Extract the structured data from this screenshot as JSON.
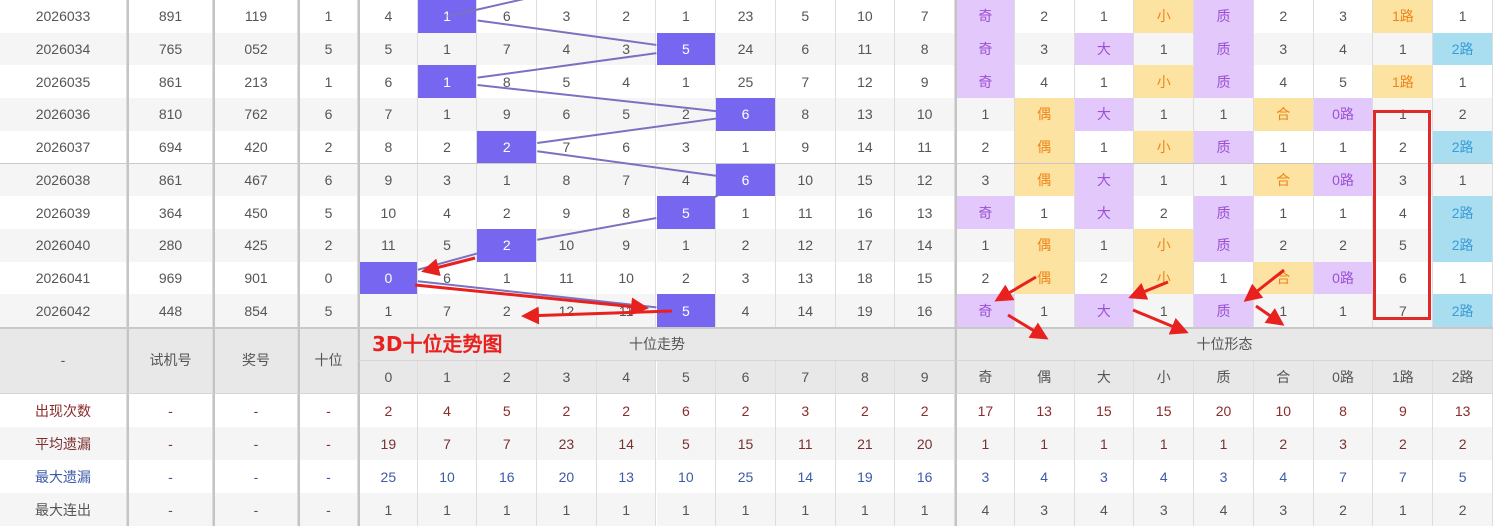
{
  "annotation": {
    "title": "3D十位走势图"
  },
  "colors": {
    "hit_bg": "#7767f0",
    "hit_text": "#ffffff",
    "purple_bg": "#e2c8fb",
    "purple_text": "#9b50d6",
    "orange_bg": "#fde3a1",
    "orange_text": "#ee8419",
    "blue_bg": "#a9def0",
    "blue_text": "#3a9bd8",
    "annotation_red": "#e8211f",
    "trend_line": "#7a72c0"
  },
  "shape_styles": {
    "奇": "purple",
    "偶": "orange",
    "大": "purple",
    "小": "orange",
    "质": "purple",
    "合": "orange",
    "0路": "purple",
    "1路": "orange",
    "2路": "blue"
  },
  "rows": [
    {
      "period": "2026033",
      "test": "891",
      "draw": "119",
      "tens": "1",
      "trend": [
        "4",
        "1",
        "6",
        "3",
        "2",
        "1",
        "23",
        "5",
        "10",
        "7"
      ],
      "shape": [
        "奇",
        "2",
        "1",
        "小",
        "质",
        "2",
        "3",
        "1路",
        "1"
      ]
    },
    {
      "period": "2026034",
      "test": "765",
      "draw": "052",
      "tens": "5",
      "trend": [
        "5",
        "1",
        "7",
        "4",
        "3",
        "5",
        "24",
        "6",
        "11",
        "8"
      ],
      "shape": [
        "奇",
        "3",
        "大",
        "1",
        "质",
        "3",
        "4",
        "1",
        "2路"
      ]
    },
    {
      "period": "2026035",
      "test": "861",
      "draw": "213",
      "tens": "1",
      "trend": [
        "6",
        "1",
        "8",
        "5",
        "4",
        "1",
        "25",
        "7",
        "12",
        "9"
      ],
      "shape": [
        "奇",
        "4",
        "1",
        "小",
        "质",
        "4",
        "5",
        "1路",
        "1"
      ]
    },
    {
      "period": "2026036",
      "test": "810",
      "draw": "762",
      "tens": "6",
      "trend": [
        "7",
        "1",
        "9",
        "6",
        "5",
        "2",
        "6",
        "8",
        "13",
        "10"
      ],
      "shape": [
        "1",
        "偶",
        "大",
        "1",
        "1",
        "合",
        "0路",
        "1",
        "2"
      ]
    },
    {
      "period": "2026037",
      "test": "694",
      "draw": "420",
      "tens": "2",
      "trend": [
        "8",
        "2",
        "2",
        "7",
        "6",
        "3",
        "1",
        "9",
        "14",
        "11"
      ],
      "shape": [
        "2",
        "偶",
        "1",
        "小",
        "质",
        "1",
        "1",
        "2",
        "2路"
      ]
    },
    {
      "period": "2026038",
      "test": "861",
      "draw": "467",
      "tens": "6",
      "trend": [
        "9",
        "3",
        "1",
        "8",
        "7",
        "4",
        "6",
        "10",
        "15",
        "12"
      ],
      "shape": [
        "3",
        "偶",
        "大",
        "1",
        "1",
        "合",
        "0路",
        "3",
        "1"
      ]
    },
    {
      "period": "2026039",
      "test": "364",
      "draw": "450",
      "tens": "5",
      "trend": [
        "10",
        "4",
        "2",
        "9",
        "8",
        "5",
        "1",
        "11",
        "16",
        "13"
      ],
      "shape": [
        "奇",
        "1",
        "大",
        "2",
        "质",
        "1",
        "1",
        "4",
        "2路"
      ]
    },
    {
      "period": "2026040",
      "test": "280",
      "draw": "425",
      "tens": "2",
      "trend": [
        "11",
        "5",
        "2",
        "10",
        "9",
        "1",
        "2",
        "12",
        "17",
        "14"
      ],
      "shape": [
        "1",
        "偶",
        "1",
        "小",
        "质",
        "2",
        "2",
        "5",
        "2路"
      ]
    },
    {
      "period": "2026041",
      "test": "969",
      "draw": "901",
      "tens": "0",
      "trend": [
        "0",
        "6",
        "1",
        "11",
        "10",
        "2",
        "3",
        "13",
        "18",
        "15"
      ],
      "shape": [
        "2",
        "偶",
        "2",
        "小",
        "1",
        "合",
        "0路",
        "6",
        "1"
      ]
    },
    {
      "period": "2026042",
      "test": "448",
      "draw": "854",
      "tens": "5",
      "trend": [
        "1",
        "7",
        "2",
        "12",
        "11",
        "5",
        "4",
        "14",
        "19",
        "16"
      ],
      "shape": [
        "奇",
        "1",
        "大",
        "1",
        "质",
        "1",
        "1",
        "7",
        "2路"
      ]
    }
  ],
  "header": {
    "dash": "-",
    "test": "试机号",
    "draw": "奖号",
    "tens": "十位",
    "trend_group": "十位走势",
    "shape_group": "十位形态",
    "digits": [
      "0",
      "1",
      "2",
      "3",
      "4",
      "5",
      "6",
      "7",
      "8",
      "9"
    ],
    "shapes": [
      "奇",
      "偶",
      "大",
      "小",
      "质",
      "合",
      "0路",
      "1路",
      "2路"
    ]
  },
  "stats": [
    {
      "label": "出现次数",
      "color": "#8b2b2b",
      "cols": [
        "-",
        "-",
        "-"
      ],
      "values": [
        "2",
        "4",
        "5",
        "2",
        "2",
        "6",
        "2",
        "3",
        "2",
        "2",
        "17",
        "13",
        "15",
        "15",
        "20",
        "10",
        "8",
        "9",
        "13"
      ]
    },
    {
      "label": "平均遗漏",
      "color": "#7a3030",
      "cols": [
        "-",
        "-",
        "-"
      ],
      "values": [
        "19",
        "7",
        "7",
        "23",
        "14",
        "5",
        "15",
        "11",
        "21",
        "20",
        "1",
        "1",
        "1",
        "1",
        "1",
        "2",
        "3",
        "2",
        "2"
      ]
    },
    {
      "label": "最大遗漏",
      "color": "#3d5aa8",
      "cols": [
        "-",
        "-",
        "-"
      ],
      "values": [
        "25",
        "10",
        "16",
        "20",
        "13",
        "10",
        "25",
        "14",
        "19",
        "16",
        "3",
        "4",
        "3",
        "4",
        "3",
        "4",
        "7",
        "7",
        "5"
      ]
    },
    {
      "label": "最大连出",
      "color": "#555555",
      "cols": [
        "-",
        "-",
        "-"
      ],
      "values": [
        "1",
        "1",
        "1",
        "1",
        "1",
        "1",
        "1",
        "1",
        "1",
        "1",
        "4",
        "3",
        "4",
        "3",
        "4",
        "3",
        "2",
        "1",
        "2"
      ]
    }
  ]
}
